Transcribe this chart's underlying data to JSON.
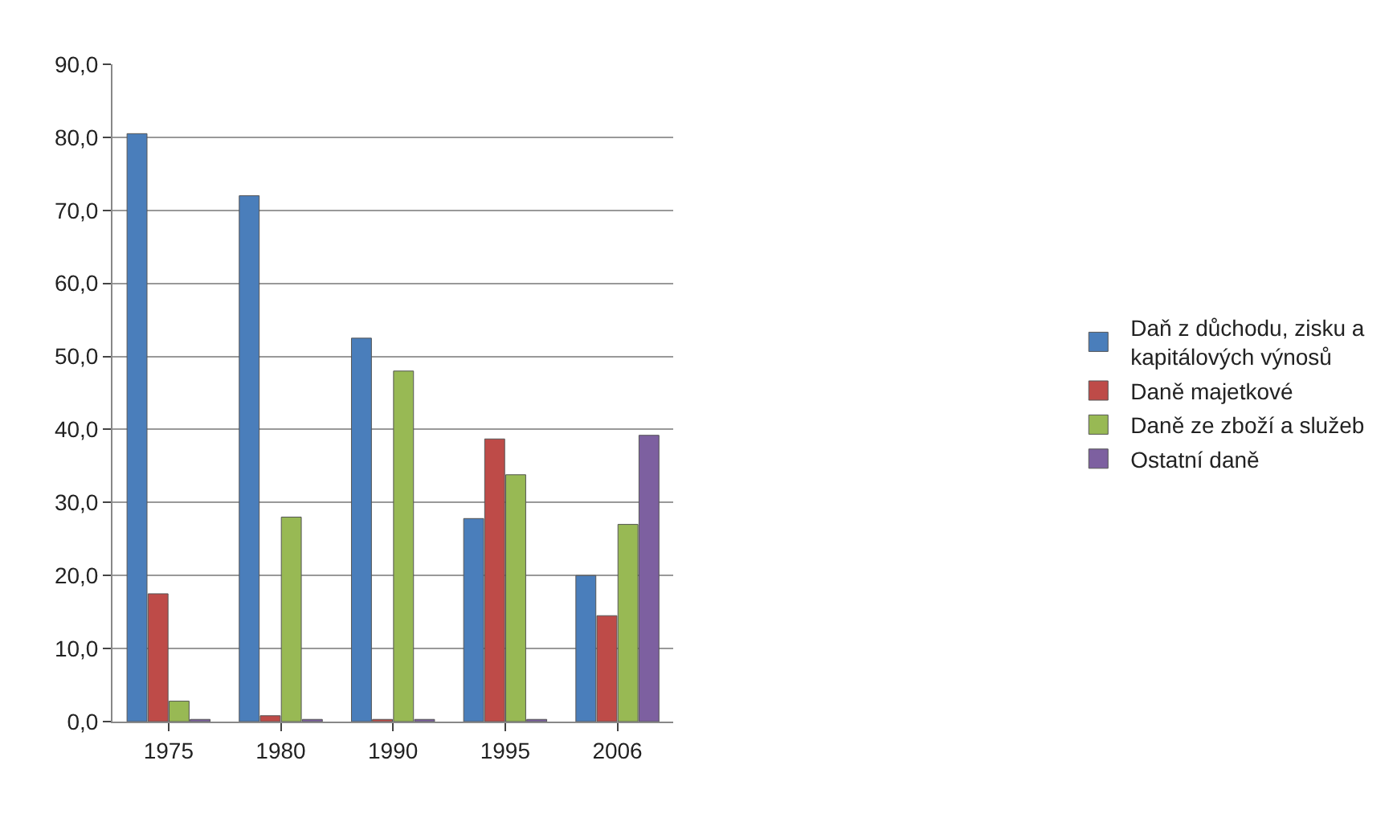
{
  "chart_data": {
    "type": "bar",
    "categories": [
      "1975",
      "1980",
      "1990",
      "1995",
      "2006"
    ],
    "series": [
      {
        "name": "Daň z důchodu, zisku a kapitálových výnosů",
        "color": "#4a7ebb",
        "values": [
          80.5,
          72.0,
          52.5,
          27.8,
          20.0
        ]
      },
      {
        "name": "Daně majetkové",
        "color": "#be4b48",
        "values": [
          17.5,
          0.8,
          0.3,
          38.7,
          14.5
        ]
      },
      {
        "name": "Daně ze zboží a služeb",
        "color": "#98b954",
        "values": [
          2.8,
          28.0,
          48.0,
          33.8,
          27.0
        ]
      },
      {
        "name": "Ostatní daně",
        "color": "#7d60a0",
        "values": [
          0.3,
          0.3,
          0.3,
          0.3,
          39.2
        ]
      }
    ],
    "ylim": [
      0,
      90
    ],
    "yticks": [
      {
        "value": 0,
        "label": "0,0"
      },
      {
        "value": 10,
        "label": "10,0"
      },
      {
        "value": 20,
        "label": "20,0"
      },
      {
        "value": 30,
        "label": "30,0"
      },
      {
        "value": 40,
        "label": "40,0"
      },
      {
        "value": 50,
        "label": "50,0"
      },
      {
        "value": 60,
        "label": "60,0"
      },
      {
        "value": 70,
        "label": "70,0"
      },
      {
        "value": 80,
        "label": "80,0"
      },
      {
        "value": 90,
        "label": "90,0"
      }
    ],
    "grid": "y",
    "legend": "right"
  }
}
